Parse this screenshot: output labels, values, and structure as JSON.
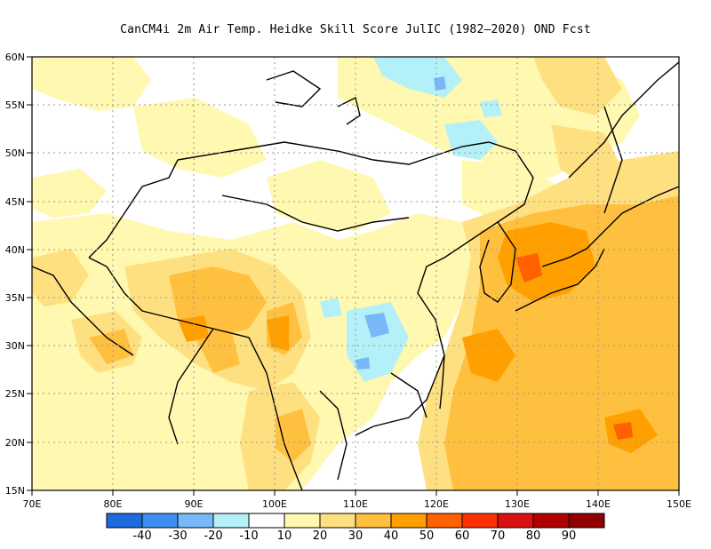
{
  "title": "CanCM4i  2m Air Temp. Heidke Skill Score JulIC (1982–2020) OND Fcst",
  "map": {
    "lon_range": [
      70,
      150
    ],
    "lat_range": [
      15,
      60
    ],
    "lon_ticks": [
      "70E",
      "80E",
      "90E",
      "100E",
      "110E",
      "120E",
      "130E",
      "140E",
      "150E"
    ],
    "lat_ticks": [
      "15N",
      "20N",
      "25N",
      "30N",
      "35N",
      "40N",
      "45N",
      "50N",
      "55N",
      "60N"
    ],
    "gridlines": "dotted"
  },
  "colorbar": {
    "labels": [
      "-40",
      "-30",
      "-20",
      "-10",
      "10",
      "20",
      "30",
      "40",
      "50",
      "60",
      "70",
      "80",
      "90"
    ],
    "colors": [
      "#1e6be0",
      "#3c8ff0",
      "#78b8f8",
      "#b4f0f8",
      "#ffffff",
      "#fff8b0",
      "#ffe080",
      "#ffc040",
      "#ffa000",
      "#ff6000",
      "#ff3000",
      "#d81010",
      "#b00000",
      "#900000"
    ]
  }
}
